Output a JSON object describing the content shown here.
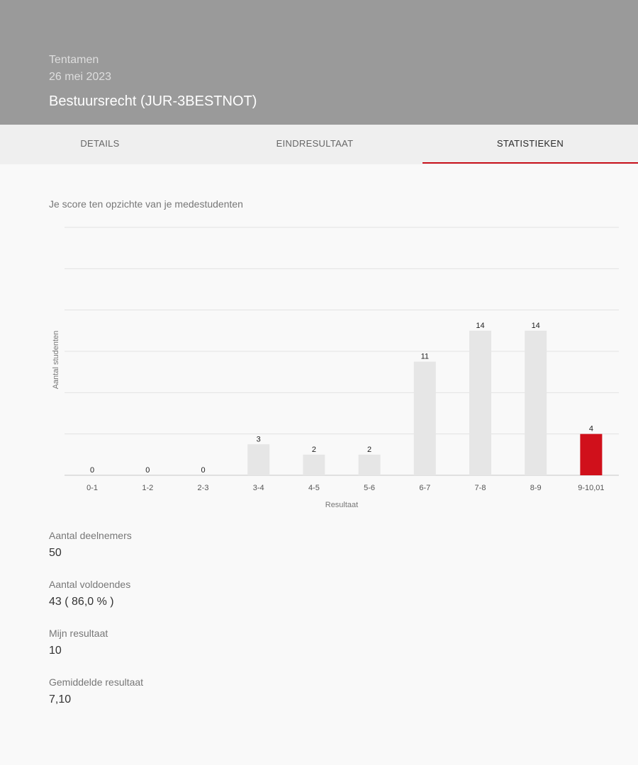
{
  "header": {
    "type": "Tentamen",
    "date": "26 mei 2023",
    "title": "Bestuursrecht (JUR-3BESTNOT)"
  },
  "tabs": [
    {
      "label": "DETAILS"
    },
    {
      "label": "EINDRESULTAAT"
    },
    {
      "label": "STATISTIEKEN",
      "active": true
    }
  ],
  "intro": "Je score ten opzichte van je medestudenten",
  "colors": {
    "header_bg": "#9a9a9a",
    "accent": "#c8101b",
    "bar": "#e6e6e6",
    "highlight_bar": "#d0101b"
  },
  "chart_data": {
    "type": "bar",
    "categories": [
      "0-1",
      "1-2",
      "2-3",
      "3-4",
      "4-5",
      "5-6",
      "6-7",
      "7-8",
      "8-9",
      "9-10,01"
    ],
    "values": [
      0,
      0,
      0,
      3,
      2,
      2,
      11,
      14,
      14,
      4
    ],
    "highlight_category": "9-10,01",
    "xlabel": "Resultaat",
    "ylabel": "Aantal studenten",
    "ylim": [
      0,
      24
    ],
    "grid": true
  },
  "stats": [
    {
      "label": "Aantal deelnemers",
      "value": "50"
    },
    {
      "label": "Aantal voldoendes",
      "value": "43 ( 86,0 % )"
    },
    {
      "label": "Mijn resultaat",
      "value": "10"
    },
    {
      "label": "Gemiddelde resultaat",
      "value": "7,10"
    }
  ]
}
